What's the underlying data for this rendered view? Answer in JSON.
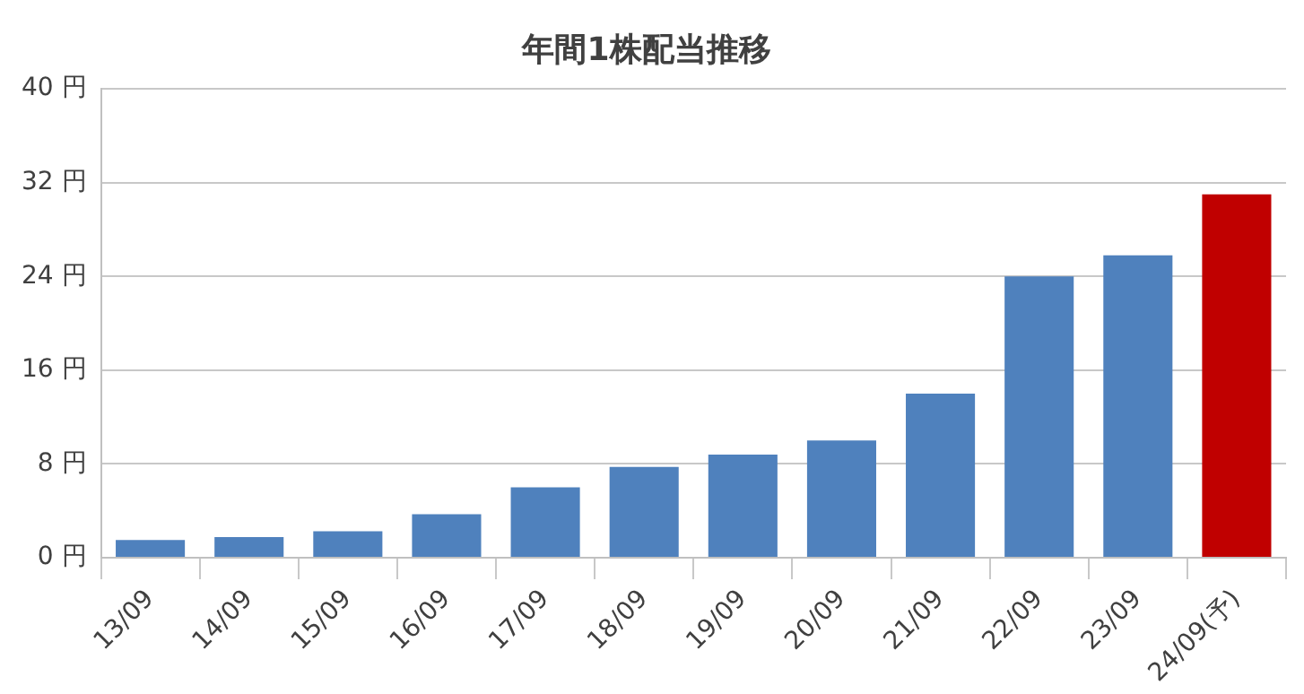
{
  "chart_data": {
    "type": "bar",
    "title": "年間1株配当推移",
    "categories": [
      "13/09",
      "14/09",
      "15/09",
      "16/09",
      "17/09",
      "18/09",
      "19/09",
      "20/09",
      "21/09",
      "22/09",
      "23/09",
      "24/09(予)"
    ],
    "values": [
      1.5,
      1.75,
      2.25,
      3.7,
      6,
      7.75,
      8.8,
      10,
      14,
      24,
      25.8,
      31
    ],
    "colors": [
      "#4f81bd",
      "#4f81bd",
      "#4f81bd",
      "#4f81bd",
      "#4f81bd",
      "#4f81bd",
      "#4f81bd",
      "#4f81bd",
      "#4f81bd",
      "#4f81bd",
      "#4f81bd",
      "#c00000"
    ],
    "ylim": [
      0,
      40
    ],
    "yticks": [
      {
        "value": 0,
        "label": "0 円"
      },
      {
        "value": 8,
        "label": "8 円"
      },
      {
        "value": 16,
        "label": "16 円"
      },
      {
        "value": 24,
        "label": "24 円"
      },
      {
        "value": 32,
        "label": "32 円"
      },
      {
        "value": 40,
        "label": "40 円"
      }
    ],
    "grid": "y",
    "legend": false
  }
}
